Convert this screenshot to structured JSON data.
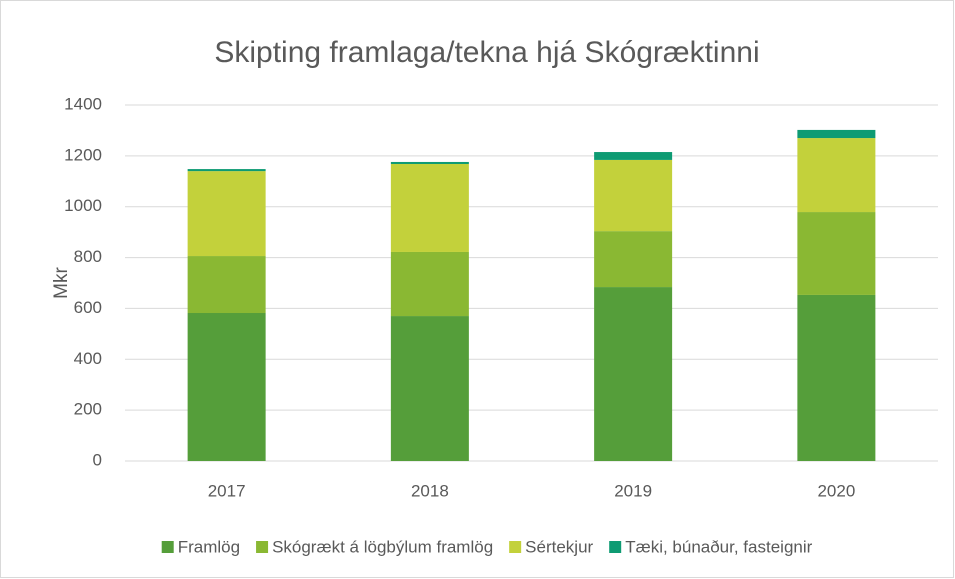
{
  "chart_data": {
    "type": "stacked_bar",
    "title": "Skipting framlaga/tekna hjá Skógræktinni",
    "y_label": "Mkr",
    "categories": [
      "2017",
      "2018",
      "2019",
      "2020"
    ],
    "series": [
      {
        "name": "Framlög",
        "color": "#559e3a",
        "values": [
          582,
          570,
          684,
          653
        ]
      },
      {
        "name": "Skógrækt á lögbýlum framlög",
        "color": "#8ab833",
        "values": [
          224,
          252,
          220,
          326
        ]
      },
      {
        "name": "Sértekjur",
        "color": "#c3d13b",
        "values": [
          334,
          346,
          280,
          291
        ]
      },
      {
        "name": "Tæki, búnaður, fasteignir",
        "color": "#0e9b73",
        "values": [
          8,
          8,
          31,
          32
        ]
      }
    ],
    "ylim": [
      0,
      1400
    ],
    "yticks": [
      0,
      200,
      400,
      600,
      800,
      1000,
      1200,
      1400
    ],
    "grid": true,
    "legend": "bottom"
  }
}
